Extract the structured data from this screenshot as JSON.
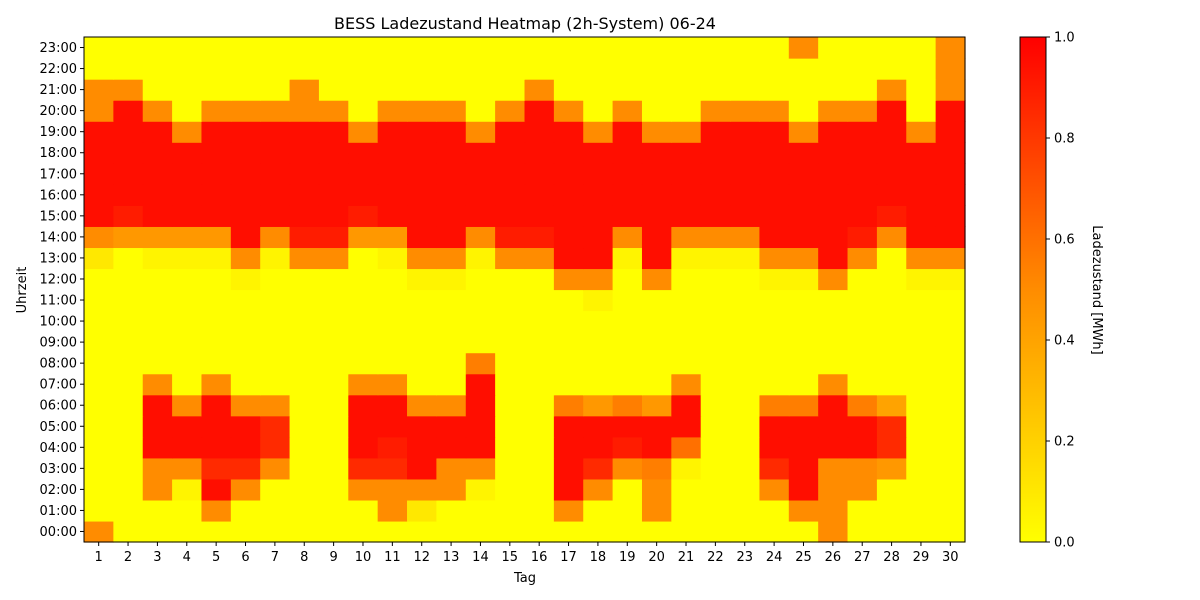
{
  "chart_data": {
    "type": "heatmap",
    "title": "BESS Ladezustand Heatmap (2h-System) 06-24",
    "xlabel": "Tag",
    "ylabel": "Uhrzeit",
    "colorbar_label": "Ladezustand [MWh]",
    "colormap": [
      "#ffff00",
      "#ff8c00",
      "#ff0000"
    ],
    "vmin": 0.0,
    "vmax": 1.0,
    "colorbar_ticks": [
      "0.0",
      "0.2",
      "0.4",
      "0.6",
      "0.8",
      "1.0"
    ],
    "x_categories": [
      "1",
      "2",
      "3",
      "4",
      "5",
      "6",
      "7",
      "8",
      "9",
      "10",
      "11",
      "12",
      "13",
      "14",
      "15",
      "16",
      "17",
      "18",
      "19",
      "20",
      "21",
      "22",
      "23",
      "24",
      "25",
      "26",
      "27",
      "28",
      "29",
      "30"
    ],
    "y_categories": [
      "00:00",
      "01:00",
      "02:00",
      "03:00",
      "04:00",
      "05:00",
      "06:00",
      "07:00",
      "08:00",
      "09:00",
      "10:00",
      "11:00",
      "12:00",
      "13:00",
      "14:00",
      "15:00",
      "16:00",
      "17:00",
      "18:00",
      "19:00",
      "20:00",
      "21:00",
      "22:00",
      "23:00"
    ],
    "values": [
      [
        0.5,
        0.0,
        0.0,
        0.0,
        0.0,
        0.0,
        0.0,
        0.0,
        0.0,
        0.0,
        0.0,
        0.0,
        0.0,
        0.0,
        0.0,
        0.0,
        0.0,
        0.0,
        0.0,
        0.0,
        0.0,
        0.0,
        0.0,
        0.0,
        0.0,
        0.5,
        0.0,
        0.0,
        0.0,
        0.0
      ],
      [
        0.0,
        0.0,
        0.0,
        0.0,
        0.5,
        0.0,
        0.0,
        0.0,
        0.0,
        0.0,
        0.5,
        0.1,
        0.0,
        0.0,
        0.0,
        0.0,
        0.5,
        0.0,
        0.0,
        0.5,
        0.0,
        0.0,
        0.0,
        0.0,
        0.5,
        0.5,
        0.0,
        0.0,
        0.0,
        0.0
      ],
      [
        0.0,
        0.0,
        0.5,
        0.05,
        0.95,
        0.5,
        0.0,
        0.0,
        0.0,
        0.5,
        0.5,
        0.5,
        0.5,
        0.05,
        0.0,
        0.0,
        0.95,
        0.5,
        0.0,
        0.5,
        0.0,
        0.0,
        0.0,
        0.5,
        0.95,
        0.5,
        0.5,
        0.0,
        0.0,
        0.0
      ],
      [
        0.0,
        0.0,
        0.5,
        0.5,
        0.85,
        0.85,
        0.5,
        0.0,
        0.0,
        0.85,
        0.85,
        0.95,
        0.5,
        0.5,
        0.0,
        0.0,
        0.95,
        0.85,
        0.5,
        0.55,
        0.05,
        0.0,
        0.0,
        0.85,
        0.95,
        0.5,
        0.5,
        0.45,
        0.0,
        0.0
      ],
      [
        0.0,
        0.0,
        0.95,
        0.95,
        0.95,
        0.95,
        0.85,
        0.0,
        0.0,
        0.95,
        0.9,
        0.95,
        0.95,
        0.95,
        0.0,
        0.0,
        0.95,
        0.95,
        0.9,
        0.95,
        0.6,
        0.0,
        0.0,
        0.95,
        0.95,
        0.95,
        0.95,
        0.85,
        0.0,
        0.0
      ],
      [
        0.0,
        0.0,
        0.95,
        0.95,
        0.95,
        0.95,
        0.85,
        0.0,
        0.0,
        0.95,
        0.95,
        0.95,
        0.95,
        0.95,
        0.0,
        0.0,
        0.95,
        0.95,
        0.95,
        0.95,
        0.95,
        0.0,
        0.0,
        0.95,
        0.95,
        0.95,
        0.95,
        0.85,
        0.0,
        0.0
      ],
      [
        0.0,
        0.0,
        0.95,
        0.5,
        0.95,
        0.5,
        0.5,
        0.0,
        0.0,
        0.95,
        0.95,
        0.5,
        0.5,
        0.95,
        0.0,
        0.0,
        0.55,
        0.45,
        0.55,
        0.45,
        0.95,
        0.0,
        0.0,
        0.55,
        0.55,
        0.95,
        0.55,
        0.4,
        0.0,
        0.0
      ],
      [
        0.0,
        0.0,
        0.5,
        0.0,
        0.5,
        0.0,
        0.0,
        0.0,
        0.0,
        0.5,
        0.5,
        0.0,
        0.0,
        0.95,
        0.0,
        0.0,
        0.0,
        0.0,
        0.0,
        0.0,
        0.5,
        0.0,
        0.0,
        0.0,
        0.0,
        0.5,
        0.0,
        0.0,
        0.0,
        0.0
      ],
      [
        0.0,
        0.0,
        0.0,
        0.0,
        0.0,
        0.0,
        0.0,
        0.0,
        0.0,
        0.0,
        0.0,
        0.0,
        0.0,
        0.55,
        0.0,
        0.0,
        0.0,
        0.0,
        0.0,
        0.0,
        0.0,
        0.0,
        0.0,
        0.0,
        0.0,
        0.0,
        0.0,
        0.0,
        0.0,
        0.0
      ],
      [
        0.0,
        0.0,
        0.0,
        0.0,
        0.0,
        0.0,
        0.0,
        0.0,
        0.0,
        0.0,
        0.0,
        0.0,
        0.0,
        0.0,
        0.0,
        0.0,
        0.0,
        0.0,
        0.0,
        0.0,
        0.0,
        0.0,
        0.0,
        0.0,
        0.0,
        0.0,
        0.0,
        0.0,
        0.0,
        0.0
      ],
      [
        0.0,
        0.0,
        0.0,
        0.0,
        0.0,
        0.0,
        0.0,
        0.0,
        0.0,
        0.0,
        0.0,
        0.0,
        0.0,
        0.0,
        0.0,
        0.0,
        0.0,
        0.0,
        0.0,
        0.0,
        0.0,
        0.0,
        0.0,
        0.0,
        0.0,
        0.0,
        0.0,
        0.0,
        0.0,
        0.0
      ],
      [
        0.0,
        0.0,
        0.0,
        0.0,
        0.0,
        0.0,
        0.0,
        0.0,
        0.0,
        0.0,
        0.0,
        0.0,
        0.0,
        0.0,
        0.0,
        0.0,
        0.0,
        0.05,
        0.0,
        0.0,
        0.0,
        0.0,
        0.0,
        0.0,
        0.0,
        0.0,
        0.0,
        0.0,
        0.0,
        0.0
      ],
      [
        0.0,
        0.0,
        0.0,
        0.0,
        0.0,
        0.05,
        0.0,
        0.0,
        0.0,
        0.0,
        0.0,
        0.05,
        0.05,
        0.0,
        0.0,
        0.0,
        0.5,
        0.5,
        0.0,
        0.5,
        0.0,
        0.0,
        0.0,
        0.05,
        0.05,
        0.5,
        0.0,
        0.0,
        0.05,
        0.05
      ],
      [
        0.1,
        0.0,
        0.05,
        0.05,
        0.05,
        0.5,
        0.05,
        0.5,
        0.5,
        0.0,
        0.05,
        0.5,
        0.5,
        0.05,
        0.5,
        0.5,
        0.95,
        0.95,
        0.05,
        0.95,
        0.05,
        0.05,
        0.05,
        0.5,
        0.5,
        0.95,
        0.5,
        0.0,
        0.5,
        0.5
      ],
      [
        0.5,
        0.45,
        0.45,
        0.45,
        0.45,
        0.95,
        0.5,
        0.9,
        0.9,
        0.45,
        0.45,
        0.95,
        0.95,
        0.5,
        0.9,
        0.9,
        0.95,
        0.95,
        0.5,
        0.95,
        0.5,
        0.5,
        0.5,
        0.95,
        0.95,
        0.95,
        0.9,
        0.5,
        0.95,
        0.95
      ],
      [
        0.95,
        0.9,
        0.95,
        0.95,
        0.95,
        0.95,
        0.95,
        0.95,
        0.95,
        0.9,
        0.95,
        0.95,
        0.95,
        0.95,
        0.95,
        0.95,
        0.95,
        0.95,
        0.95,
        0.95,
        0.95,
        0.95,
        0.95,
        0.95,
        0.95,
        0.95,
        0.95,
        0.9,
        0.95,
        0.95
      ],
      [
        0.95,
        0.95,
        0.95,
        0.95,
        0.95,
        0.95,
        0.95,
        0.95,
        0.95,
        0.95,
        0.95,
        0.95,
        0.95,
        0.95,
        0.95,
        0.95,
        0.95,
        0.95,
        0.95,
        0.95,
        0.95,
        0.95,
        0.95,
        0.95,
        0.95,
        0.95,
        0.95,
        0.95,
        0.95,
        0.95
      ],
      [
        0.95,
        0.95,
        0.95,
        0.95,
        0.95,
        0.95,
        0.95,
        0.95,
        0.95,
        0.95,
        0.95,
        0.95,
        0.95,
        0.95,
        0.95,
        0.95,
        0.95,
        0.95,
        0.95,
        0.95,
        0.95,
        0.95,
        0.95,
        0.95,
        0.95,
        0.95,
        0.95,
        0.95,
        0.95,
        0.95
      ],
      [
        0.95,
        0.95,
        0.95,
        0.95,
        0.95,
        0.95,
        0.95,
        0.95,
        0.95,
        0.95,
        0.95,
        0.95,
        0.95,
        0.95,
        0.95,
        0.95,
        0.95,
        0.95,
        0.95,
        0.95,
        0.95,
        0.95,
        0.95,
        0.95,
        0.95,
        0.95,
        0.95,
        0.95,
        0.95,
        0.95
      ],
      [
        0.95,
        0.95,
        0.95,
        0.5,
        0.95,
        0.95,
        0.95,
        0.95,
        0.95,
        0.5,
        0.95,
        0.95,
        0.95,
        0.5,
        0.95,
        0.95,
        0.95,
        0.5,
        0.95,
        0.5,
        0.5,
        0.95,
        0.95,
        0.95,
        0.5,
        0.95,
        0.95,
        0.95,
        0.5,
        0.95
      ],
      [
        0.5,
        0.95,
        0.5,
        0.0,
        0.5,
        0.5,
        0.5,
        0.5,
        0.5,
        0.0,
        0.5,
        0.5,
        0.5,
        0.0,
        0.5,
        0.95,
        0.5,
        0.0,
        0.5,
        0.0,
        0.0,
        0.5,
        0.5,
        0.5,
        0.0,
        0.5,
        0.5,
        0.95,
        0.0,
        0.95
      ],
      [
        0.5,
        0.5,
        0.0,
        0.0,
        0.0,
        0.0,
        0.0,
        0.5,
        0.0,
        0.0,
        0.0,
        0.0,
        0.0,
        0.0,
        0.0,
        0.5,
        0.0,
        0.0,
        0.0,
        0.0,
        0.0,
        0.0,
        0.0,
        0.0,
        0.0,
        0.0,
        0.0,
        0.5,
        0.0,
        0.5
      ],
      [
        0.0,
        0.0,
        0.0,
        0.0,
        0.0,
        0.0,
        0.0,
        0.0,
        0.0,
        0.0,
        0.0,
        0.0,
        0.0,
        0.0,
        0.0,
        0.0,
        0.0,
        0.0,
        0.0,
        0.0,
        0.0,
        0.0,
        0.0,
        0.0,
        0.0,
        0.0,
        0.0,
        0.0,
        0.0,
        0.5
      ],
      [
        0.0,
        0.0,
        0.0,
        0.0,
        0.0,
        0.0,
        0.0,
        0.0,
        0.0,
        0.0,
        0.0,
        0.0,
        0.0,
        0.0,
        0.0,
        0.0,
        0.0,
        0.0,
        0.0,
        0.0,
        0.0,
        0.0,
        0.0,
        0.0,
        0.5,
        0.0,
        0.0,
        0.0,
        0.0,
        0.5
      ]
    ]
  }
}
